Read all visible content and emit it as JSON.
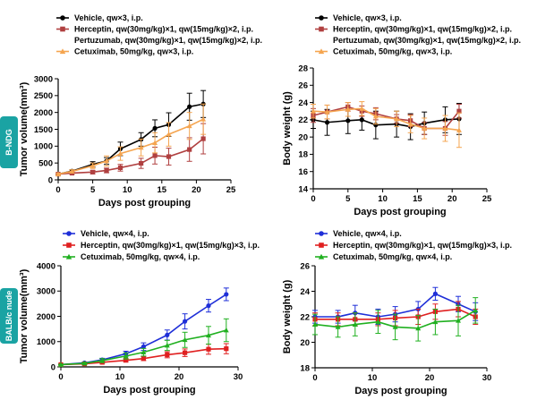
{
  "groups": [
    {
      "id": "bndg",
      "label": "B-NDG"
    },
    {
      "id": "balbc",
      "label": "BALB/c nude"
    }
  ],
  "chart_data": [
    {
      "id": "bndg_tumor",
      "type": "line",
      "xlabel": "Days post grouping",
      "ylabel": "Tumor volume(mm³)",
      "xlim": [
        0,
        25
      ],
      "xticks": [
        0,
        5,
        10,
        15,
        20,
        25
      ],
      "ylim": [
        0,
        3000
      ],
      "yticks": [
        0,
        500,
        1000,
        1500,
        2000,
        2500,
        3000
      ],
      "legend": [
        {
          "label": "Vehicle, qw×3, i.p.",
          "series": 0
        },
        {
          "label": "Herceptin, qw(30mg/kg)×1, qw(15mg/kg)×2, i.p.",
          "series": 1
        },
        {
          "label": "Pertuzumab, qw(30mg/kg)×1, qw(15mg/kg)×2, i.p.",
          "series": null
        },
        {
          "label": "Cetuximab, 50mg/kg, qw×3, i.p.",
          "series": 2
        }
      ],
      "series": [
        {
          "name": "Vehicle",
          "color": "#000000",
          "marker": "circle",
          "x": [
            0,
            2,
            5,
            7,
            9,
            12,
            14,
            16,
            19,
            21
          ],
          "y": [
            170,
            260,
            460,
            560,
            920,
            1200,
            1530,
            1640,
            2170,
            2250
          ],
          "err": [
            30,
            40,
            80,
            100,
            200,
            200,
            250,
            350,
            400,
            400
          ]
        },
        {
          "name": "Herceptin + Pertuzumab",
          "color": "#b04040",
          "marker": "square",
          "x": [
            0,
            2,
            5,
            7,
            9,
            12,
            14,
            16,
            19,
            21
          ],
          "y": [
            170,
            200,
            230,
            280,
            360,
            490,
            720,
            690,
            900,
            1220
          ],
          "err": [
            20,
            30,
            50,
            70,
            100,
            150,
            250,
            250,
            350,
            450
          ]
        },
        {
          "name": "Cetuximab",
          "color": "#f5a550",
          "marker": "triangle",
          "x": [
            0,
            2,
            5,
            7,
            9,
            12,
            14,
            16,
            19,
            21
          ],
          "y": [
            170,
            250,
            420,
            560,
            780,
            960,
            1100,
            1350,
            1600,
            1800
          ],
          "err": [
            30,
            50,
            80,
            150,
            200,
            250,
            300,
            350,
            400,
            450
          ]
        }
      ]
    },
    {
      "id": "bndg_bw",
      "type": "line",
      "xlabel": "Days post grouping",
      "ylabel": "Body weight (g)",
      "xlim": [
        0,
        25
      ],
      "xticks": [
        0,
        5,
        10,
        15,
        20,
        25
      ],
      "ylim": [
        14,
        28
      ],
      "yticks": [
        14,
        16,
        18,
        20,
        22,
        24,
        26,
        28
      ],
      "legend": [
        {
          "label": "Vehicle, qw×3, i.p.",
          "series": 0
        },
        {
          "label": "Herceptin, qw(30mg/kg)×1, qw(15mg/kg)×2, i.p.",
          "series": 1
        },
        {
          "label": "Pertuzumab, qw(30mg/kg)×1, qw(15mg/kg)×2, i.p.",
          "series": null
        },
        {
          "label": "Cetuximab, 50mg/kg, qw×3, i.p.",
          "series": 2
        }
      ],
      "series": [
        {
          "name": "Vehicle",
          "color": "#000000",
          "marker": "circle",
          "x": [
            0,
            2,
            5,
            7,
            9,
            12,
            14,
            16,
            19,
            21
          ],
          "y": [
            22.0,
            21.7,
            21.9,
            22.0,
            21.4,
            21.5,
            21.2,
            21.6,
            22.0,
            22.1
          ],
          "err": [
            1.0,
            1.5,
            1.5,
            1.2,
            1.6,
            1.5,
            1.5,
            1.3,
            1.5,
            1.8
          ]
        },
        {
          "name": "Herceptin + Pertuzumab",
          "color": "#b04040",
          "marker": "square",
          "x": [
            0,
            2,
            5,
            7,
            9,
            12,
            14,
            16,
            19,
            21
          ],
          "y": [
            22.5,
            22.9,
            23.5,
            23.0,
            22.7,
            22.1,
            21.9,
            21.0,
            21.0,
            23.0
          ],
          "err": [
            0.8,
            0.8,
            0.5,
            0.6,
            0.7,
            0.5,
            0.7,
            0.7,
            0.8,
            0.8
          ]
        },
        {
          "name": "Cetuximab",
          "color": "#f5a550",
          "marker": "triangle",
          "x": [
            0,
            2,
            5,
            7,
            9,
            12,
            14,
            16,
            19,
            21
          ],
          "y": [
            23.0,
            22.9,
            23.2,
            23.3,
            22.4,
            22.1,
            21.5,
            21.0,
            21.0,
            20.8
          ],
          "err": [
            0.8,
            0.8,
            0.8,
            0.8,
            0.9,
            0.9,
            1.0,
            1.2,
            1.5,
            2.0
          ]
        }
      ]
    },
    {
      "id": "balbc_tumor",
      "type": "line",
      "xlabel": "Days post grouping",
      "ylabel": "Tumor volume(mm³)",
      "xlim": [
        0,
        30
      ],
      "xticks": [
        0,
        10,
        20,
        30
      ],
      "ylim": [
        0,
        4000
      ],
      "yticks": [
        0,
        1000,
        2000,
        3000,
        4000
      ],
      "legend": [
        {
          "label": "Vehicle, qw×4, i.p.",
          "series": 0
        },
        {
          "label": "Herceptin, qw(30mg/kg)×1, qw(15mg/kg)×3, i.p.",
          "series": 1
        },
        {
          "label": "Cetuximab, 50mg/kg, qw×4, i.p.",
          "series": 2
        }
      ],
      "series": [
        {
          "name": "Vehicle",
          "color": "#1f2fd8",
          "marker": "circle",
          "x": [
            0,
            4,
            7,
            11,
            14,
            18,
            21,
            25,
            28
          ],
          "y": [
            90,
            160,
            280,
            520,
            800,
            1260,
            1800,
            2420,
            2870
          ],
          "err": [
            20,
            30,
            60,
            100,
            150,
            200,
            300,
            250,
            250
          ]
        },
        {
          "name": "Herceptin",
          "color": "#e02020",
          "marker": "square",
          "x": [
            0,
            4,
            7,
            11,
            14,
            18,
            21,
            25,
            28
          ],
          "y": [
            90,
            120,
            180,
            260,
            330,
            480,
            560,
            700,
            720
          ],
          "err": [
            20,
            30,
            40,
            60,
            80,
            120,
            150,
            200,
            200
          ]
        },
        {
          "name": "Cetuximab",
          "color": "#20b020",
          "marker": "triangle",
          "x": [
            0,
            4,
            7,
            11,
            14,
            18,
            21,
            25,
            28
          ],
          "y": [
            90,
            140,
            250,
            430,
            580,
            850,
            1070,
            1250,
            1450
          ],
          "err": [
            20,
            40,
            80,
            120,
            150,
            200,
            300,
            350,
            450
          ]
        }
      ]
    },
    {
      "id": "balbc_bw",
      "type": "line",
      "xlabel": "Days post grouping",
      "ylabel": "Body weight (g)",
      "xlim": [
        0,
        30
      ],
      "xticks": [
        0,
        10,
        20,
        30
      ],
      "ylim": [
        18,
        26
      ],
      "yticks": [
        18,
        20,
        22,
        24,
        26
      ],
      "legend": [
        {
          "label": "Vehicle, qw×4, i.p.",
          "series": 0
        },
        {
          "label": "Herceptin, qw(30mg/kg)×1, qw(15mg/kg)×3, i.p.",
          "series": 1
        },
        {
          "label": "Cetuximab, 50mg/kg, qw×4, i.p.",
          "series": 2
        }
      ],
      "series": [
        {
          "name": "Vehicle",
          "color": "#1f2fd8",
          "marker": "circle",
          "x": [
            0,
            4,
            7,
            11,
            14,
            18,
            21,
            25,
            28
          ],
          "y": [
            22.0,
            22.0,
            22.3,
            22.0,
            22.2,
            22.6,
            23.8,
            23.0,
            22.4
          ],
          "err": [
            0.5,
            0.5,
            0.6,
            0.6,
            0.6,
            0.6,
            0.5,
            0.6,
            0.7
          ]
        },
        {
          "name": "Herceptin",
          "color": "#e02020",
          "marker": "square",
          "x": [
            0,
            4,
            7,
            11,
            14,
            18,
            21,
            25,
            28
          ],
          "y": [
            21.8,
            21.8,
            21.8,
            21.8,
            21.9,
            22.0,
            22.4,
            22.6,
            22.0
          ],
          "err": [
            0.5,
            0.5,
            0.5,
            0.5,
            0.6,
            0.6,
            0.6,
            0.6,
            0.6
          ]
        },
        {
          "name": "Cetuximab",
          "color": "#20b020",
          "marker": "triangle",
          "x": [
            0,
            4,
            7,
            11,
            14,
            18,
            21,
            25,
            28
          ],
          "y": [
            21.4,
            21.2,
            21.4,
            21.6,
            21.2,
            21.1,
            21.6,
            21.7,
            22.5
          ],
          "err": [
            0.8,
            0.8,
            0.9,
            0.9,
            1.0,
            1.0,
            1.0,
            1.2,
            1.0
          ]
        }
      ]
    }
  ]
}
